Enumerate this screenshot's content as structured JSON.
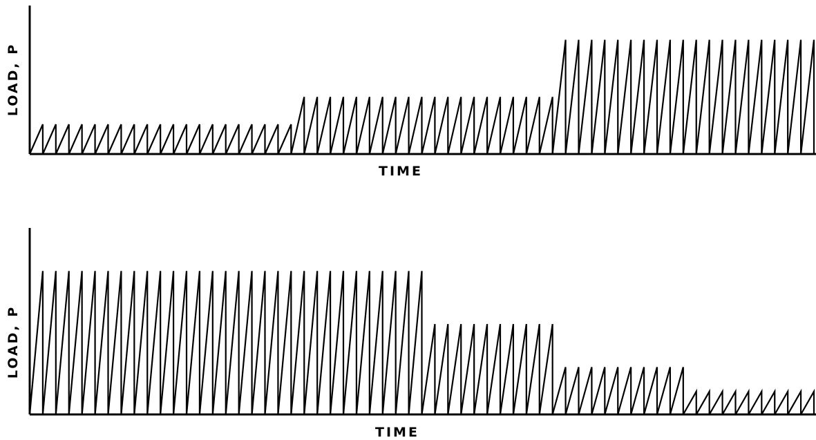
{
  "colors": {
    "ink": "#000000",
    "background": "#ffffff"
  },
  "chart_data": [
    {
      "type": "line",
      "title": "",
      "xlabel": "TIME",
      "ylabel": "LOAD, P",
      "axis_ticks": false,
      "grid": false,
      "legend": "none",
      "waveform": "sawtooth",
      "ylim": [
        0,
        1.3
      ],
      "blocks": [
        {
          "cycles": 20,
          "peak": 0.26
        },
        {
          "cycles": 20,
          "peak": 0.5
        },
        {
          "cycles": 20,
          "peak": 1.0
        }
      ]
    },
    {
      "type": "line",
      "title": "",
      "xlabel": "TIME",
      "ylabel": "LOAD, P",
      "axis_ticks": false,
      "grid": false,
      "legend": "none",
      "waveform": "sawtooth",
      "ylim": [
        0,
        1.3
      ],
      "blocks": [
        {
          "cycles": 30,
          "peak": 1.0
        },
        {
          "cycles": 10,
          "peak": 0.63
        },
        {
          "cycles": 10,
          "peak": 0.33
        },
        {
          "cycles": 10,
          "peak": 0.16
        }
      ]
    }
  ]
}
